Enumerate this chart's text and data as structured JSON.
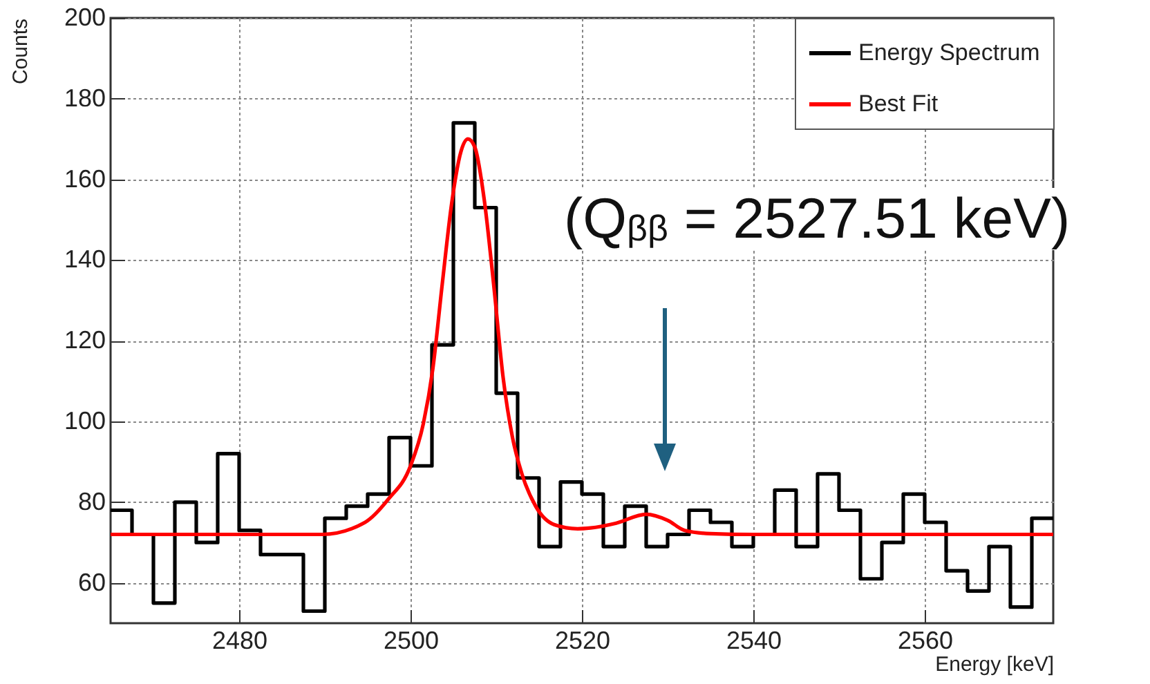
{
  "chart_data": {
    "type": "histogram",
    "xlabel": "Energy [keV]",
    "ylabel": "Counts",
    "bins": [
      2465,
      2467.5,
      2470,
      2472.5,
      2475,
      2477.5,
      2480,
      2482.5,
      2485,
      2487.5,
      2490,
      2492.5,
      2495,
      2497.5,
      2500,
      2502.5,
      2505,
      2507.5,
      2510,
      2512.5,
      2515,
      2517.5,
      2520,
      2522.5,
      2525,
      2527.5,
      2530,
      2532.5,
      2535,
      2537.5,
      2540,
      2542.5,
      2545,
      2547.5,
      2550,
      2552.5,
      2555,
      2557.5,
      2560,
      2562.5,
      2565,
      2567.5,
      2570,
      2572.5,
      2575
    ],
    "series": [
      {
        "name": "Energy Spectrum",
        "type": "histogram",
        "color": "#000000",
        "values": [
          78,
          72,
          55,
          80,
          70,
          92,
          73,
          67,
          67,
          53,
          76,
          79,
          82,
          96,
          89,
          119,
          174,
          153,
          107,
          86,
          69,
          85,
          82,
          69,
          79,
          69,
          72,
          78,
          75,
          69,
          72,
          83,
          69,
          87,
          78,
          61,
          70,
          82,
          75,
          63,
          58,
          69,
          54,
          76
        ]
      },
      {
        "name": "Best Fit",
        "type": "line",
        "color": "#ff0000",
        "x": [
          2465,
          2480,
          2489.7,
          2494.7,
          2497.4,
          2500,
          2501.5,
          2502.6,
          2503.7,
          2504.8,
          2505.9,
          2506.7,
          2507.5,
          2508.6,
          2509.7,
          2510.8,
          2511.9,
          2513,
          2514.6,
          2516.8,
          2519.5,
          2521,
          2524,
          2527.5,
          2530,
          2532,
          2535,
          2540,
          2555,
          2575
        ],
        "values": [
          72,
          72,
          72,
          75,
          80.7,
          89,
          99.5,
          113,
          134,
          154,
          167,
          170,
          168,
          155,
          134,
          111,
          96,
          87,
          79,
          74.4,
          73.4,
          73.6,
          74.8,
          77,
          75.5,
          73,
          72.2,
          72,
          72,
          72
        ]
      }
    ],
    "xlim": [
      2465,
      2575
    ],
    "xticks": [
      2480,
      2500,
      2520,
      2540,
      2560
    ],
    "ylim": [
      50,
      200
    ],
    "yticks": [
      60,
      80,
      100,
      120,
      140,
      160,
      180,
      200
    ],
    "grid": true,
    "legend": "top right",
    "annotations": [
      "(Q$_{ββ}$ = 2527.51 keV)"
    ]
  }
}
